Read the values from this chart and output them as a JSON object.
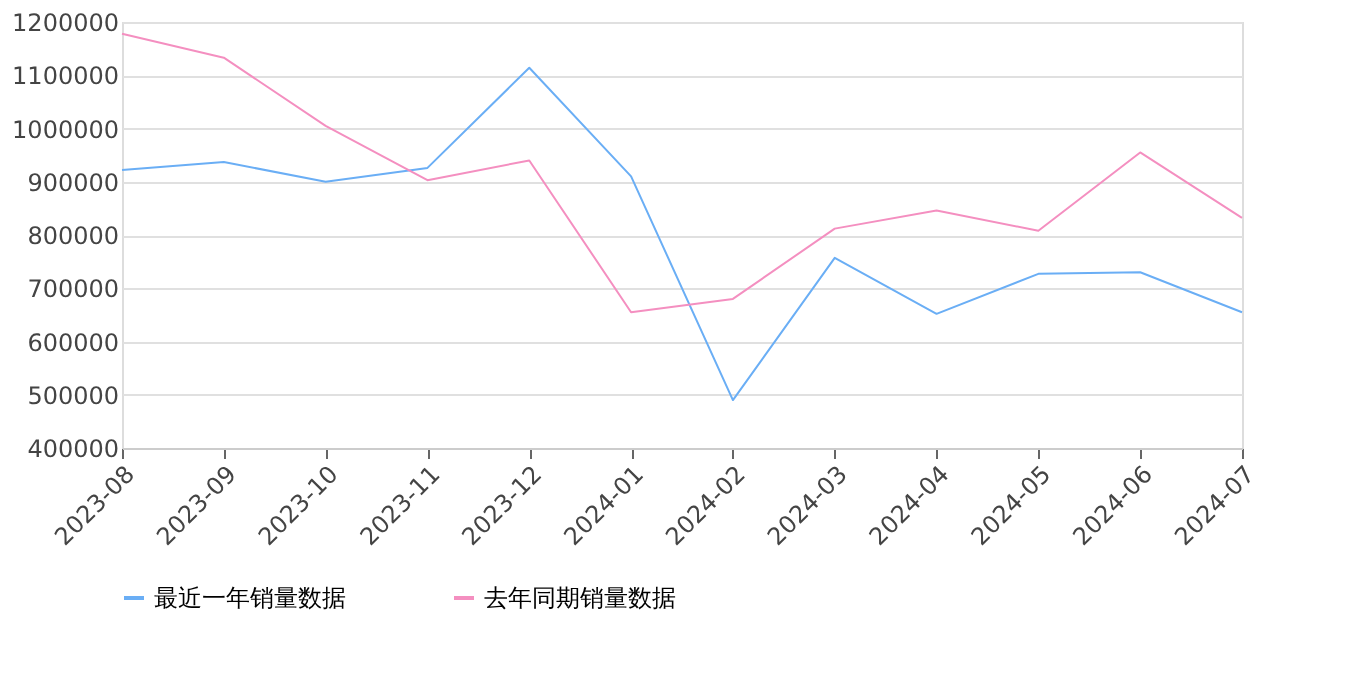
{
  "chart_data": {
    "type": "line",
    "categories": [
      "2023-08",
      "2023-09",
      "2023-10",
      "2023-11",
      "2023-12",
      "2024-01",
      "2024-02",
      "2024-03",
      "2024-04",
      "2024-05",
      "2024-06",
      "2024-07"
    ],
    "series": [
      {
        "name": "最近一年销量数据",
        "color": "#6aaef5",
        "values": [
          922000,
          937000,
          900000,
          926000,
          1114000,
          910000,
          490000,
          757000,
          652000,
          727000,
          730000,
          655000
        ]
      },
      {
        "name": "去年同期销量数据",
        "color": "#f48fc0",
        "values": [
          1178000,
          1133000,
          1005000,
          903000,
          940000,
          655000,
          680000,
          812000,
          846000,
          808000,
          955000,
          832000
        ]
      }
    ],
    "ylim": [
      400000,
      1200000
    ],
    "yticks": [
      400000,
      500000,
      600000,
      700000,
      800000,
      900000,
      1000000,
      1100000,
      1200000
    ],
    "grid": "y",
    "legend": "bottom",
    "marker": "none",
    "line_style": "solid"
  }
}
